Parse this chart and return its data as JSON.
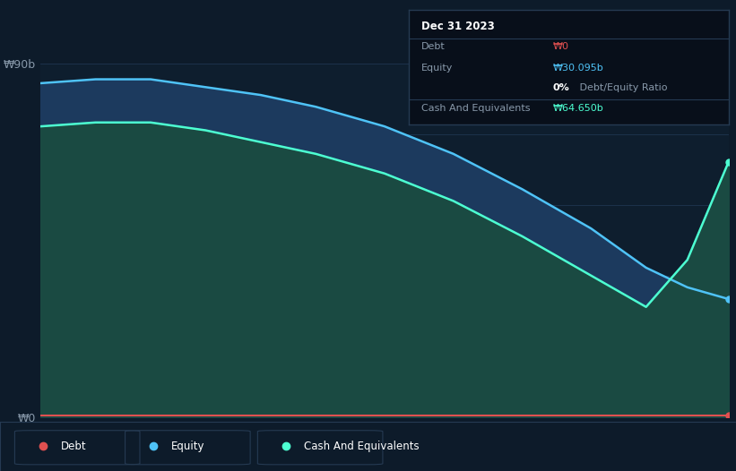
{
  "background_color": "#0d1b2a",
  "plot_bg_color": "#0e1e2e",
  "ylim": [
    0,
    90
  ],
  "x": [
    0.0,
    0.08,
    0.16,
    0.24,
    0.32,
    0.4,
    0.5,
    0.6,
    0.7,
    0.8,
    0.88,
    0.94,
    1.0
  ],
  "equity": [
    85,
    86,
    86,
    84,
    82,
    79,
    74,
    67,
    58,
    48,
    38,
    33,
    30
  ],
  "cash": [
    74,
    75,
    75,
    73,
    70,
    67,
    62,
    55,
    46,
    36,
    28,
    40,
    65
  ],
  "debt": [
    0.4,
    0.4,
    0.4,
    0.4,
    0.4,
    0.4,
    0.4,
    0.4,
    0.4,
    0.4,
    0.4,
    0.4,
    0.4
  ],
  "equity_line_color": "#4fc3f7",
  "cash_line_color": "#4dffd2",
  "debt_line_color": "#e05050",
  "equity_fill": "#1c3a5e",
  "cash_fill": "#1a4a42",
  "grid_color": "#1e3550",
  "text_color": "#8899aa",
  "tooltip_bg": "#080f1a",
  "tooltip_border": "#253a52",
  "tooltip_title": "Dec 31 2023",
  "tooltip_debt_value": "₩0",
  "tooltip_equity_value": "₩30.095b",
  "tooltip_ratio": "0% Debt/Equity Ratio",
  "tooltip_cash_value": "₩64.650b",
  "legend_items": [
    {
      "label": "Debt",
      "color": "#e05050"
    },
    {
      "label": "Equity",
      "color": "#4fc3f7"
    },
    {
      "label": "Cash And Equivalents",
      "color": "#4dffd2"
    }
  ]
}
